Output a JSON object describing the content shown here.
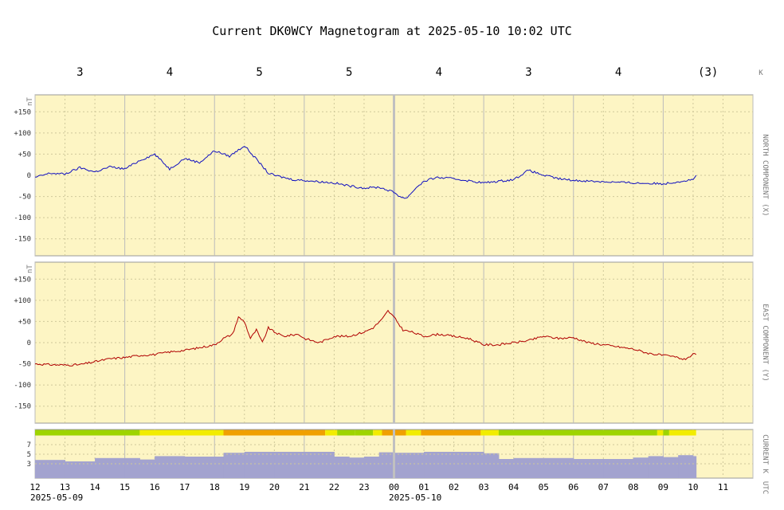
{
  "title": "Current DK0WCY Magnetogram at 2025-05-10 10:02 UTC",
  "colors": {
    "panel_bg": "#fdf5c4",
    "north_line": "#1010c0",
    "east_line": "#b00000",
    "k_area": "#a3a3cf",
    "k_green": "#9ed400",
    "k_yellow": "#f2ec00",
    "k_orange": "#f0a000",
    "grid_major": "#bbbbbb",
    "grid_minor": "#cfc89a",
    "now_marker": "#c0c0c0"
  },
  "chart_data": [
    {
      "type": "line",
      "name": "north-component",
      "side_label": "NORTH COMPONENT (X)",
      "unit": "nT",
      "ylim": [
        -190,
        190
      ],
      "yticks": [
        "+150",
        "+100",
        "+50",
        "0",
        "-50",
        "-100",
        "-150"
      ],
      "x_hours": [
        0,
        0.5,
        1,
        1.5,
        2,
        2.5,
        3,
        3.5,
        4,
        4.5,
        5,
        5.5,
        6,
        6.5,
        7,
        7.5,
        7.8,
        8,
        8.3,
        8.6,
        9,
        9.5,
        10,
        10.5,
        11,
        11.5,
        12,
        12.2,
        12.4,
        12.6,
        12.8,
        13,
        13.4,
        14,
        15,
        16,
        16.5,
        17,
        17.5,
        18,
        19,
        20,
        21,
        22,
        22.1
      ],
      "values": [
        -5,
        5,
        3,
        18,
        8,
        20,
        15,
        35,
        50,
        15,
        40,
        30,
        58,
        45,
        70,
        30,
        5,
        0,
        -5,
        -10,
        -12,
        -15,
        -18,
        -25,
        -30,
        -28,
        -40,
        -50,
        -55,
        -40,
        -25,
        -15,
        -5,
        -8,
        -18,
        -10,
        12,
        0,
        -8,
        -12,
        -15,
        -18,
        -20,
        -10,
        0
      ]
    },
    {
      "type": "line",
      "name": "east-component",
      "side_label": "EAST COMPONENT (Y)",
      "unit": "nT",
      "ylim": [
        -190,
        190
      ],
      "yticks": [
        "+150",
        "+100",
        "+50",
        "0",
        "-50",
        "-100",
        "-150"
      ],
      "x_hours": [
        0,
        0.5,
        1,
        1.5,
        2,
        2.5,
        3,
        3.5,
        4,
        4.5,
        5,
        5.5,
        6,
        6.3,
        6.6,
        6.8,
        7.0,
        7.2,
        7.4,
        7.6,
        7.8,
        8.0,
        8.3,
        8.8,
        9,
        9.5,
        10,
        10.5,
        11,
        11.3,
        11.6,
        11.8,
        12,
        12.3,
        12.6,
        13,
        13.5,
        14,
        14.5,
        15,
        15.5,
        16,
        16.5,
        17,
        17.5,
        18,
        18.5,
        19,
        19.5,
        20,
        20.5,
        21,
        21.5,
        21.7,
        22,
        22.1
      ],
      "values": [
        -50,
        -52,
        -53,
        -52,
        -45,
        -38,
        -35,
        -30,
        -28,
        -22,
        -18,
        -12,
        -5,
        10,
        20,
        60,
        50,
        10,
        30,
        0,
        35,
        25,
        15,
        20,
        10,
        0,
        15,
        15,
        25,
        35,
        55,
        75,
        60,
        30,
        25,
        15,
        20,
        15,
        10,
        -5,
        -5,
        0,
        5,
        15,
        10,
        12,
        0,
        -5,
        -10,
        -15,
        -25,
        -30,
        -35,
        -40,
        -28,
        -28
      ]
    },
    {
      "type": "bar",
      "name": "k-index",
      "side_label": "CURRENT K",
      "ylim": [
        0,
        9
      ],
      "yticks": [
        "7",
        "5",
        "3"
      ],
      "bar_hours_from": [
        0,
        1,
        2,
        3,
        3.5,
        4,
        5,
        6,
        6.3,
        7,
        8,
        9,
        10,
        10.5,
        11,
        11.5,
        12,
        13,
        14,
        15,
        15.5,
        16,
        17,
        18,
        19,
        20,
        20.5,
        21,
        21.5,
        22
      ],
      "bar_hours_to": [
        1,
        2,
        3,
        3.5,
        4,
        5,
        6,
        6.3,
        7,
        8,
        9,
        10,
        10.5,
        11,
        11.5,
        12,
        13,
        14,
        15,
        15.5,
        16,
        17,
        18,
        19,
        20,
        20.5,
        21,
        21.5,
        22,
        22.1
      ],
      "values": [
        3.8,
        3.5,
        4.2,
        4.2,
        3.9,
        4.6,
        4.5,
        4.5,
        5.3,
        5.5,
        5.5,
        5.5,
        4.5,
        4.3,
        4.5,
        5.4,
        5.3,
        5.5,
        5.5,
        5.2,
        4.0,
        4.2,
        4.2,
        4.0,
        4.0,
        4.3,
        4.6,
        4.4,
        4.8,
        4.6
      ],
      "strip_hours_from": [
        0,
        3.5,
        6.3,
        9.7,
        10.1,
        10.7,
        11.3,
        11.6,
        12.4,
        12.9,
        14.9,
        15.5,
        20.8,
        21.0,
        21.2
      ],
      "strip_hours_to": [
        3.5,
        6.3,
        9.7,
        10.1,
        10.7,
        11.3,
        11.6,
        12.4,
        12.9,
        14.9,
        15.5,
        20.8,
        21.0,
        21.2,
        22.1
      ],
      "strip_levels": [
        "green",
        "yellow",
        "orange",
        "yellow",
        "green",
        "green",
        "yellow",
        "orange",
        "yellow",
        "orange",
        "yellow",
        "green",
        "yellow",
        "green",
        "yellow"
      ]
    }
  ],
  "k_index_top": {
    "axis_label": "K",
    "values": [
      "3",
      "4",
      "5",
      "5",
      "4",
      "3",
      "4",
      "(3)"
    ]
  },
  "x_axis": {
    "side_label": "UTC",
    "ticks": [
      "12",
      "13",
      "14",
      "15",
      "16",
      "17",
      "18",
      "19",
      "20",
      "21",
      "22",
      "23",
      "00",
      "01",
      "02",
      "03",
      "04",
      "05",
      "06",
      "07",
      "08",
      "09",
      "10",
      "11"
    ],
    "date_left": "2025-05-09",
    "date_mid": "2025-05-10",
    "range_hours": [
      0,
      24
    ],
    "now_hour": 12.0
  }
}
